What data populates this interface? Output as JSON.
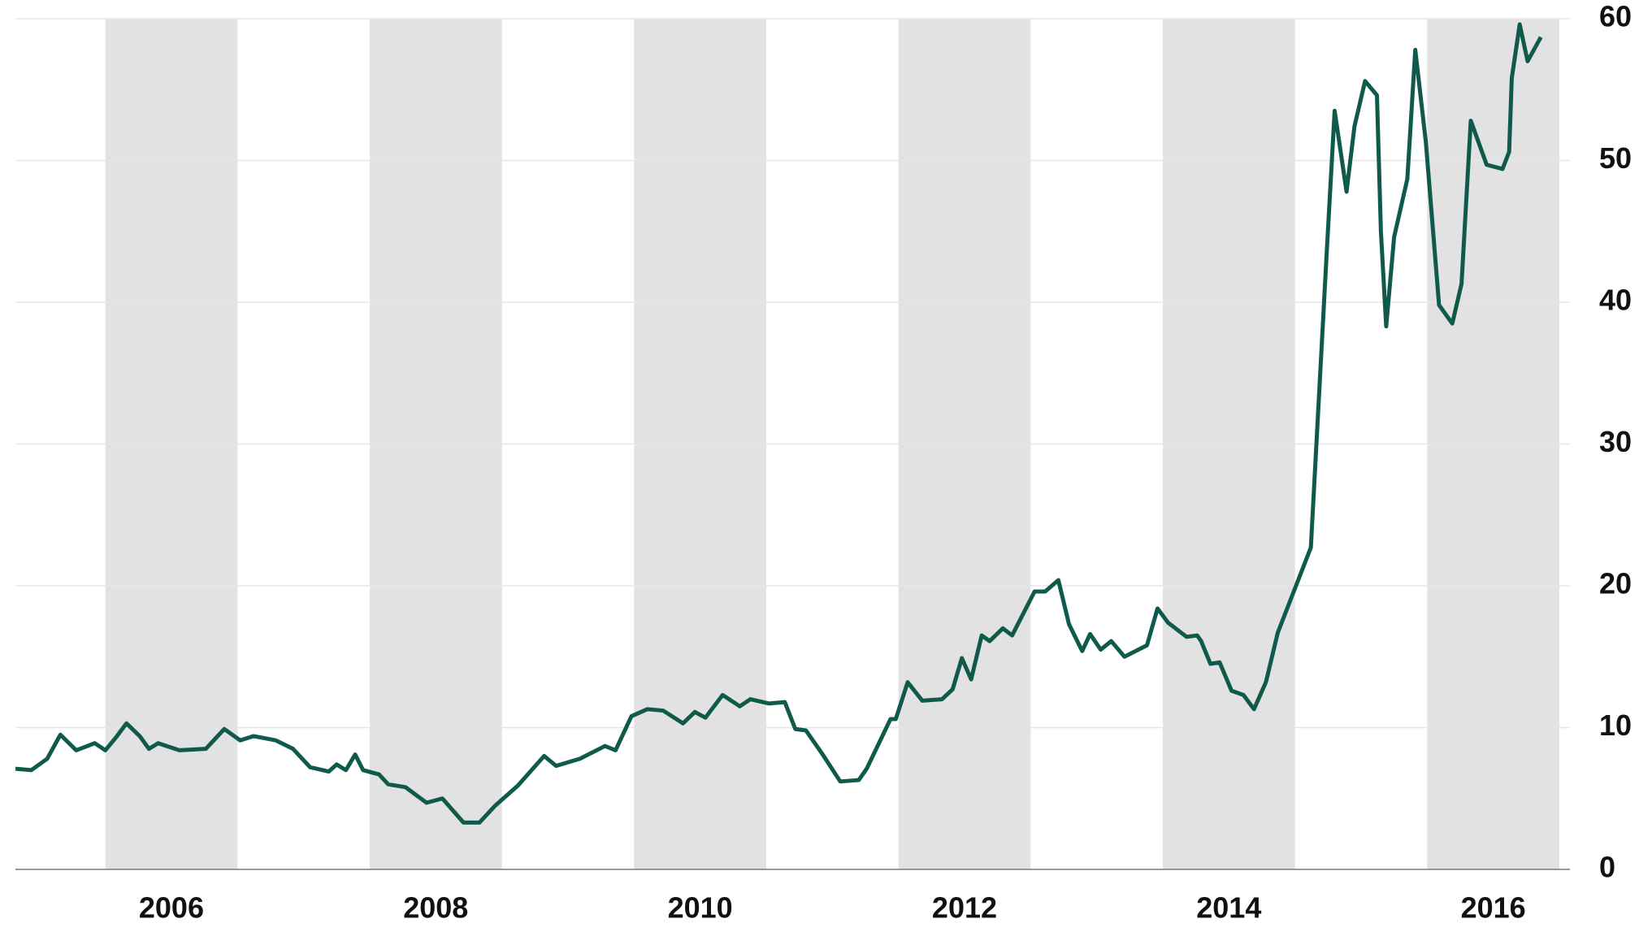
{
  "chart_data": {
    "type": "line",
    "series": [
      {
        "color": "#0f5a4b",
        "x": [
          2005.32,
          2005.44,
          2005.56,
          2005.66,
          2005.78,
          2005.92,
          2006.0,
          2006.08,
          2006.16,
          2006.26,
          2006.33,
          2006.4,
          2006.56,
          2006.76,
          2006.9,
          2007.02,
          2007.12,
          2007.29,
          2007.42,
          2007.55,
          2007.69,
          2007.75,
          2007.82,
          2007.89,
          2007.95,
          2008.07,
          2008.14,
          2008.27,
          2008.43,
          2008.55,
          2008.71,
          2008.83,
          2008.95,
          2009.12,
          2009.32,
          2009.41,
          2009.59,
          2009.78,
          2009.86,
          2009.98,
          2010.1,
          2010.22,
          2010.37,
          2010.46,
          2010.54,
          2010.67,
          2010.8,
          2010.88,
          2011.02,
          2011.14,
          2011.22,
          2011.3,
          2011.42,
          2011.56,
          2011.7,
          2011.76,
          2011.94,
          2011.98,
          2012.07,
          2012.18,
          2012.33,
          2012.41,
          2012.48,
          2012.55,
          2012.63,
          2012.69,
          2012.79,
          2012.86,
          2013.03,
          2013.11,
          2013.21,
          2013.29,
          2013.39,
          2013.45,
          2013.53,
          2013.61,
          2013.71,
          2013.88,
          2013.96,
          2014.04,
          2014.18,
          2014.26,
          2014.29,
          2014.36,
          2014.43,
          2014.52,
          2014.61,
          2014.69,
          2014.78,
          2014.87,
          2015.12,
          2015.18,
          2015.24,
          2015.3,
          2015.39,
          2015.45,
          2015.53,
          2015.62,
          2015.65,
          2015.69,
          2015.75,
          2015.85,
          2015.91,
          2015.99,
          2016.09,
          2016.19,
          2016.26,
          2016.33,
          2016.45,
          2016.57,
          2016.62,
          2016.64,
          2016.7,
          2016.76,
          2016.86
        ],
        "values": [
          7.1,
          7.0,
          7.8,
          9.5,
          8.4,
          8.9,
          8.4,
          9.3,
          10.3,
          9.4,
          8.5,
          8.9,
          8.4,
          8.5,
          9.9,
          9.1,
          9.4,
          9.1,
          8.5,
          7.2,
          6.9,
          7.4,
          7.0,
          8.1,
          7.0,
          6.7,
          6.0,
          5.8,
          4.7,
          5.0,
          3.3,
          3.3,
          4.5,
          5.9,
          8.0,
          7.3,
          7.8,
          8.7,
          8.4,
          10.8,
          11.3,
          11.2,
          10.3,
          11.1,
          10.7,
          12.3,
          11.5,
          12.0,
          11.7,
          11.8,
          9.9,
          9.8,
          8.2,
          6.2,
          6.3,
          7.1,
          10.6,
          10.6,
          13.2,
          11.9,
          12.0,
          12.7,
          14.9,
          13.4,
          16.5,
          16.1,
          17.0,
          16.5,
          19.6,
          19.6,
          20.4,
          17.3,
          15.4,
          16.6,
          15.5,
          16.1,
          15.0,
          15.8,
          18.4,
          17.4,
          16.4,
          16.5,
          16.1,
          14.5,
          14.6,
          12.6,
          12.3,
          11.3,
          13.2,
          16.7,
          22.7,
          33.1,
          43.5,
          53.5,
          47.8,
          52.4,
          55.6,
          54.6,
          45.0,
          38.3,
          44.6,
          48.7,
          57.8,
          51.3,
          39.8,
          38.5,
          41.3,
          52.8,
          49.7,
          49.4,
          50.6,
          55.8,
          59.6,
          57.0,
          58.7
        ]
      }
    ],
    "shaded_periods": [
      [
        2006,
        2007
      ],
      [
        2008,
        2009
      ],
      [
        2010,
        2011
      ],
      [
        2012,
        2013
      ],
      [
        2014,
        2015
      ],
      [
        2016,
        2017
      ]
    ],
    "xlim": [
      2005.32,
      2017.08
    ],
    "xticks": [
      {
        "value": 2006.5,
        "label": "2006"
      },
      {
        "value": 2008.5,
        "label": "2008"
      },
      {
        "value": 2010.5,
        "label": "2010"
      },
      {
        "value": 2012.5,
        "label": "2012"
      },
      {
        "value": 2014.5,
        "label": "2014"
      },
      {
        "value": 2016.5,
        "label": "2016"
      }
    ],
    "ylim": [
      0,
      60
    ],
    "yticks": [
      0,
      10,
      20,
      30,
      40,
      50,
      60
    ],
    "grid": true
  }
}
